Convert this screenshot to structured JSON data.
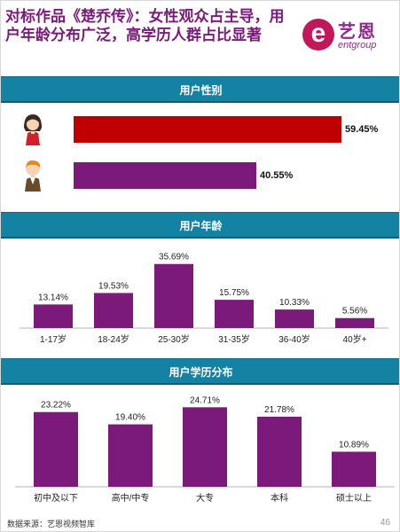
{
  "title": "对标作品《楚乔传》：女性观众占主导，用户年龄分布广泛，高学历人群占比显著",
  "logo": {
    "cn": "艺恩",
    "en": "entgroup",
    "mark": "e"
  },
  "footer": {
    "source": "数据来源：艺恩视频智库",
    "page": "46"
  },
  "colors": {
    "female": "#c00000",
    "male": "#7b1a7a",
    "bars": "#7b1a7a",
    "section": "#1483a3"
  },
  "sections": {
    "gender": "用户性别",
    "age": "用户年龄",
    "edu": "用户学历分布"
  },
  "gender": {
    "female": {
      "value": 59.45,
      "label": "59.45%",
      "icon": "female-user-icon"
    },
    "male": {
      "value": 40.55,
      "label": "40.55%",
      "icon": "male-user-icon"
    }
  },
  "chart_data": [
    {
      "type": "bar",
      "title": "用户年龄",
      "categories": [
        "1-17岁",
        "18-24岁",
        "25-30岁",
        "31-35岁",
        "36-40岁",
        "40岁+"
      ],
      "values": [
        13.14,
        19.53,
        35.69,
        15.75,
        10.33,
        5.56
      ],
      "labels": [
        "13.14%",
        "19.53%",
        "35.69%",
        "15.75%",
        "10.33%",
        "5.56%"
      ],
      "ylim": [
        0,
        40
      ]
    },
    {
      "type": "bar",
      "title": "用户学历分布",
      "categories": [
        "初中及以下",
        "高中/中专",
        "大专",
        "本科",
        "硕士以上"
      ],
      "values": [
        23.22,
        19.4,
        24.71,
        21.78,
        10.89
      ],
      "labels": [
        "23.22%",
        "19.40%",
        "24.71%",
        "21.78%",
        "10.89%"
      ],
      "ylim": [
        0,
        27
      ]
    }
  ]
}
